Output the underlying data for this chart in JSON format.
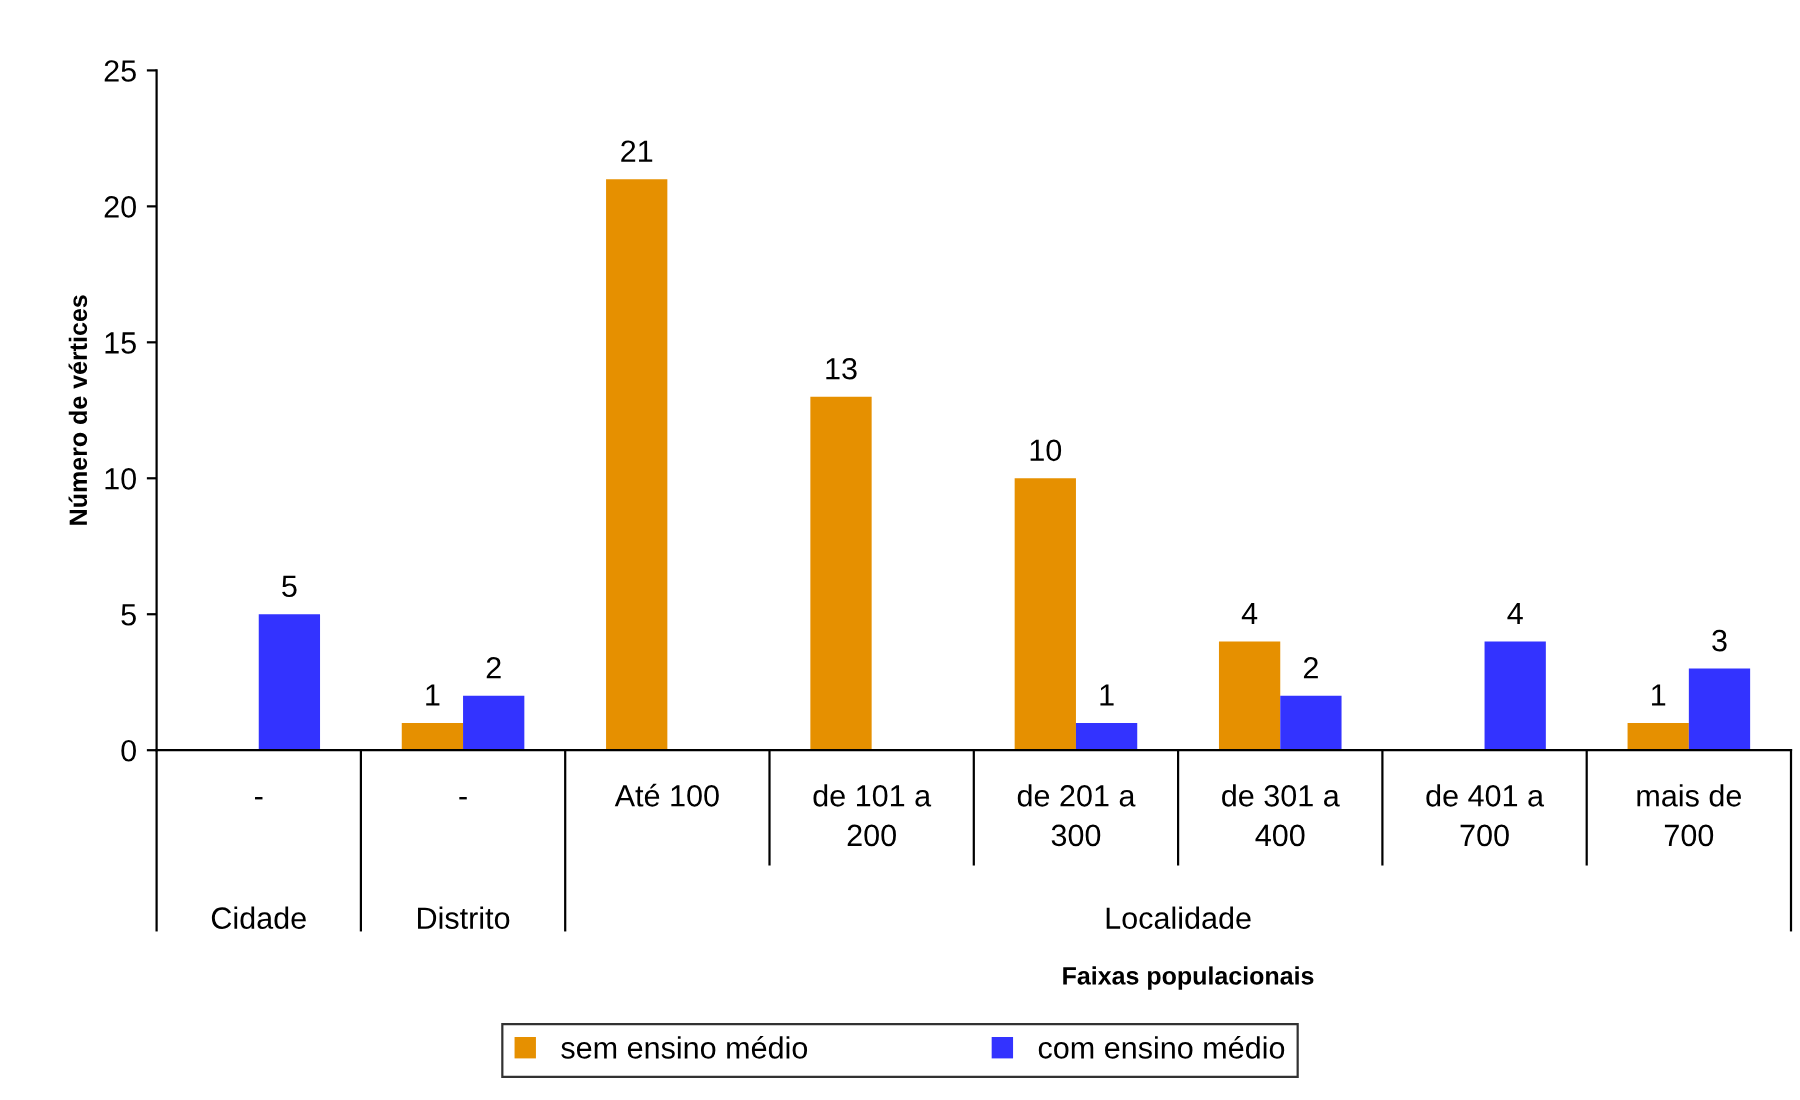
{
  "chart_data": {
    "type": "bar",
    "categories": [
      "-",
      "-",
      "Até 100",
      "de 101 a 200",
      "de 201 a 300",
      "de 301 a 400",
      "de 401 a 700",
      "mais de 700"
    ],
    "series": [
      {
        "name": "sem ensino médio",
        "color": "#e69000",
        "values": [
          null,
          1,
          21,
          13,
          10,
          4,
          null,
          1
        ]
      },
      {
        "name": "com ensino médio",
        "color": "#3333ff",
        "values": [
          5,
          2,
          null,
          null,
          1,
          2,
          4,
          3
        ]
      }
    ],
    "xlabel": "Faixas populacionais",
    "ylabel": "Número de vértices",
    "annotations": [
      "Cidade",
      "Distrito",
      "Localidade"
    ],
    "ylim": [
      0,
      25
    ],
    "yticks": [
      0,
      5,
      10,
      15,
      20,
      25
    ],
    "data_labels": true,
    "grid": false,
    "legend": "bottom"
  }
}
